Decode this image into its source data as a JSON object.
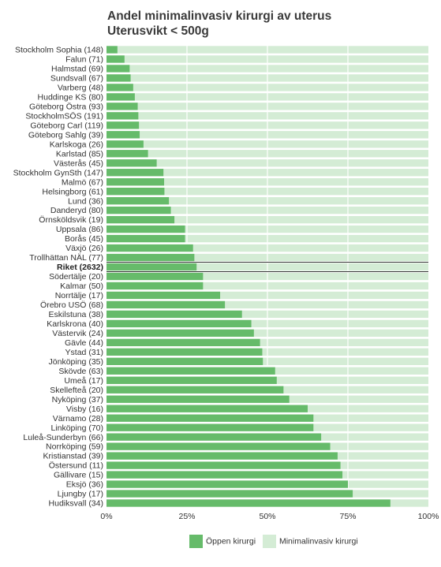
{
  "chart_data": {
    "type": "bar",
    "orientation": "horizontal",
    "stacked": true,
    "title": "Andel minimalinvasiv kirurgi av uterus",
    "subtitle": "Uterusvikt < 500g",
    "xlim": [
      0,
      100
    ],
    "xticks": [
      "0%",
      "25%",
      "50%",
      "75%",
      "100%"
    ],
    "grid": true,
    "legend_position": "bottom",
    "highlight_category": "Riket (2632)",
    "categories": [
      "Stockholm Sophia (148)",
      "Falun (71)",
      "Halmstad (69)",
      "Sundsvall (67)",
      "Varberg (48)",
      "Huddinge KS (80)",
      "Göteborg Östra (93)",
      "StockholmSÖS (191)",
      "Göteborg Carl (119)",
      "Göteborg Sahlg (39)",
      "Karlskoga (26)",
      "Karlstad (85)",
      "Västerås (45)",
      "Stockholm GynSth (147)",
      "Malmö (67)",
      "Helsingborg (61)",
      "Lund (36)",
      "Danderyd (80)",
      "Örnsköldsvik (19)",
      "Uppsala (86)",
      "Borås (45)",
      "Växjö (26)",
      "Trollhättan NÄL (77)",
      "Riket (2632)",
      "Södertälje (20)",
      "Kalmar (50)",
      "Norrtälje (17)",
      "Örebro USÖ (68)",
      "Eskilstuna (38)",
      "Karlskrona (40)",
      "Västervik (24)",
      "Gävle (44)",
      "Ystad (31)",
      "Jönköping (35)",
      "Skövde (63)",
      "Umeå (17)",
      "Skellefteå (20)",
      "Nyköping (37)",
      "Visby (16)",
      "Värnamo (28)",
      "Linköping (70)",
      "Luleå-Sunderbyn (66)",
      "Norrköping (59)",
      "Kristianstad (39)",
      "Östersund (11)",
      "Gällivare (15)",
      "Eksjö (36)",
      "Ljungby (17)",
      "Hudiksvall (34)"
    ],
    "series": [
      {
        "name": "Öppen kirurgi",
        "color": "#66bb6a",
        "values": [
          3.4,
          5.6,
          7.2,
          7.5,
          8.3,
          8.8,
          9.7,
          9.9,
          10.1,
          10.3,
          11.5,
          12.9,
          15.6,
          17.7,
          17.9,
          18.0,
          19.4,
          20.0,
          21.1,
          24.4,
          24.4,
          26.9,
          27.3,
          28.0,
          30.0,
          30.0,
          35.3,
          36.8,
          42.1,
          45.0,
          45.8,
          47.7,
          48.4,
          48.6,
          52.4,
          52.9,
          55.0,
          56.8,
          62.5,
          64.3,
          64.3,
          66.7,
          69.5,
          71.8,
          72.7,
          73.3,
          75.0,
          76.5,
          88.2
        ]
      },
      {
        "name": "Minimalinvasiv kirurgi",
        "color": "#d4ecd5",
        "values": [
          96.6,
          94.4,
          92.8,
          92.5,
          91.7,
          91.2,
          90.3,
          90.1,
          89.9,
          89.7,
          88.5,
          87.1,
          84.4,
          82.3,
          82.1,
          82.0,
          80.6,
          80.0,
          78.9,
          75.6,
          75.6,
          73.1,
          72.7,
          72.0,
          70.0,
          70.0,
          64.7,
          63.2,
          57.9,
          55.0,
          54.2,
          52.3,
          51.6,
          51.4,
          47.6,
          47.1,
          45.0,
          43.2,
          37.5,
          35.7,
          35.7,
          33.3,
          30.5,
          28.2,
          27.3,
          26.7,
          25.0,
          23.5,
          11.8
        ]
      }
    ]
  }
}
